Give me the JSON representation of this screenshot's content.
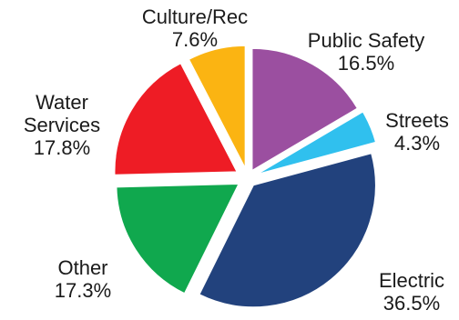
{
  "chart_data": {
    "type": "pie",
    "title": "",
    "exploded": true,
    "start": "12 o'clock, clockwise",
    "slices": [
      {
        "label": "Public Safety",
        "value": 16.5,
        "display": "16.5%",
        "color": "#9b4fa0"
      },
      {
        "label": "Streets",
        "value": 4.3,
        "display": "4.3%",
        "color": "#30c0ee"
      },
      {
        "label": "Electric",
        "value": 36.5,
        "display": "36.5%",
        "color": "#22427d"
      },
      {
        "label": "Other",
        "value": 17.3,
        "display": "17.3%",
        "color": "#10a84e"
      },
      {
        "label": "Water Services",
        "value": 17.8,
        "display": "17.8%",
        "color": "#ee1c25"
      },
      {
        "label": "Culture/Rec",
        "value": 7.6,
        "display": "7.6%",
        "color": "#fbb412"
      }
    ]
  }
}
